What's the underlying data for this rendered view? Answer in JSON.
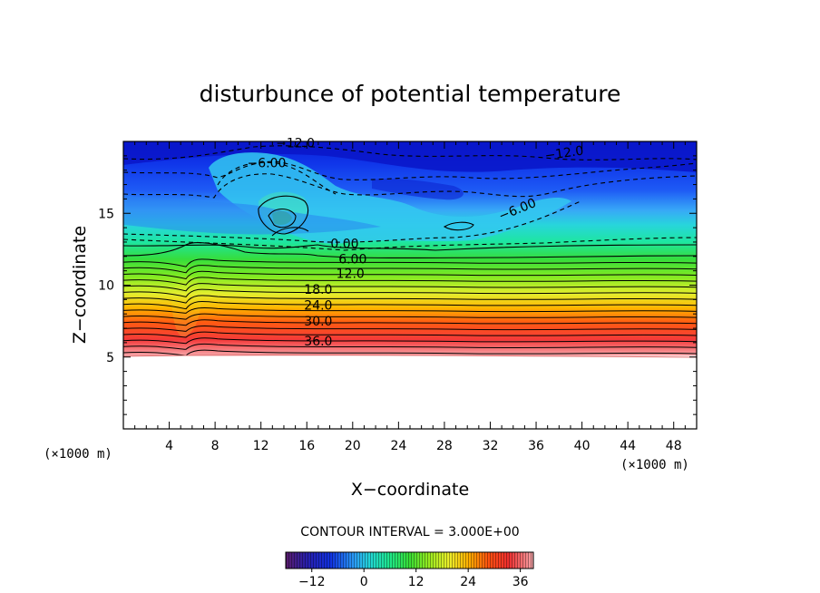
{
  "chart_data": {
    "type": "heatmap",
    "title": "disturbunce of potential temperature",
    "xlabel": "X−coordinate",
    "ylabel": "Z−coordinate",
    "x_unit": "(×1000 m)",
    "z_unit": "(×1000 m)",
    "xlim": [
      0,
      50
    ],
    "ylim": [
      0,
      20
    ],
    "x_ticks": [
      "4",
      "8",
      "12",
      "16",
      "20",
      "24",
      "28",
      "32",
      "36",
      "40",
      "44",
      "48"
    ],
    "y_ticks": [
      "5",
      "10",
      "15"
    ],
    "contour_interval_text": "CONTOUR INTERVAL = 3.000E+00",
    "contour_labels": [
      {
        "text": "−12.0",
        "x": 15.0,
        "z": 19.6
      },
      {
        "text": "−6.00",
        "x": 12.5,
        "z": 18.2
      },
      {
        "text": "−12.0",
        "x": 38.5,
        "z": 18.9
      },
      {
        "text": "−6.00",
        "x": 34.5,
        "z": 15.0
      },
      {
        "text": "0.00",
        "x": 19.3,
        "z": 12.6
      },
      {
        "text": "6.00",
        "x": 20.0,
        "z": 11.5
      },
      {
        "text": "12.0",
        "x": 19.8,
        "z": 10.5
      },
      {
        "text": "18.0",
        "x": 17.0,
        "z": 9.4
      },
      {
        "text": "24.0",
        "x": 17.0,
        "z": 8.3
      },
      {
        "text": "30.0",
        "x": 17.0,
        "z": 7.2
      },
      {
        "text": "36.0",
        "x": 17.0,
        "z": 5.8
      }
    ],
    "colorbar": {
      "min": -18,
      "max": 39,
      "ticks": [
        "−12",
        "0",
        "12",
        "24",
        "36"
      ],
      "tick_values": [
        -12,
        0,
        12,
        24,
        36
      ]
    },
    "grid": false
  }
}
